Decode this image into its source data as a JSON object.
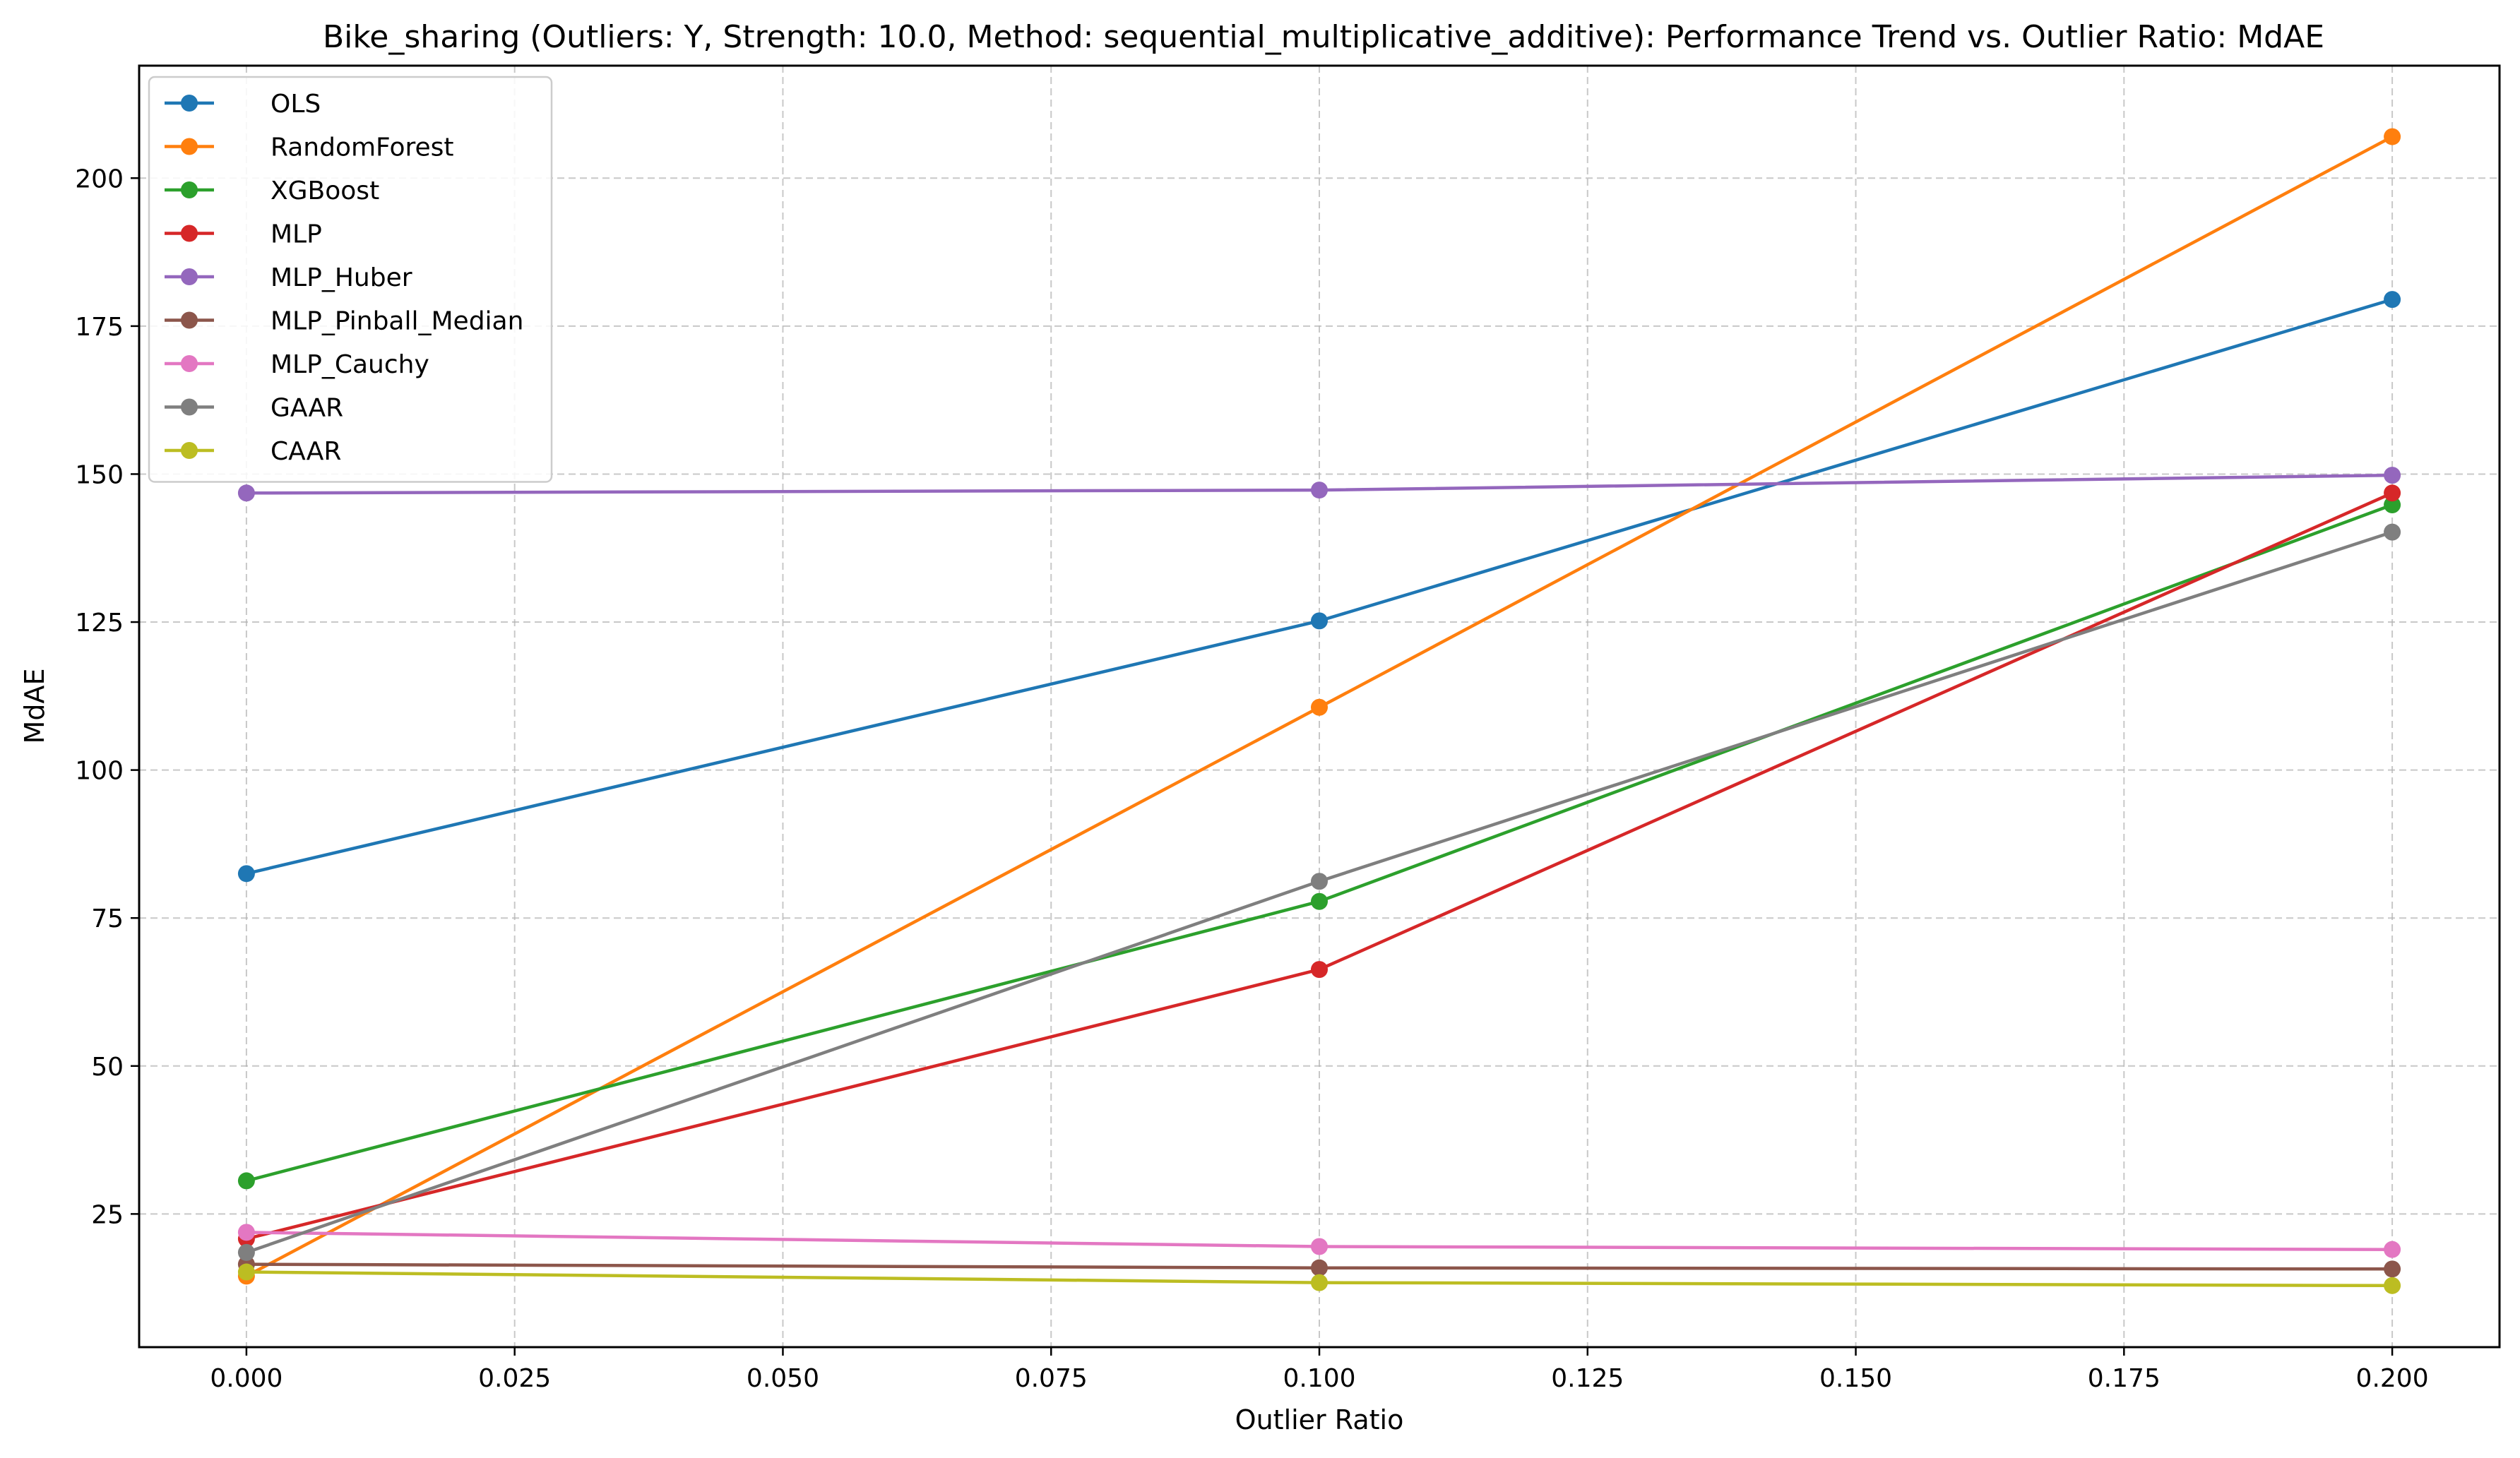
{
  "chart_data": {
    "type": "line",
    "title": "Bike_sharing (Outliers: Y, Strength: 10.0, Method: sequential_multiplicative_additive): Performance Trend vs. Outlier Ratio: MdAE",
    "xlabel": "Outlier Ratio",
    "ylabel": "MdAE",
    "xlim": [
      -0.01,
      0.21
    ],
    "ylim": [
      2.5,
      219
    ],
    "xticks": [
      "0.000",
      "0.025",
      "0.050",
      "0.075",
      "0.100",
      "0.125",
      "0.150",
      "0.175",
      "0.200"
    ],
    "yticks": [
      "25",
      "50",
      "75",
      "100",
      "125",
      "150",
      "175",
      "200"
    ],
    "grid": true,
    "legend_position": "upper-left",
    "x": [
      0.0,
      0.1,
      0.2
    ],
    "series": [
      {
        "name": "OLS",
        "color": "#1f77b4",
        "values": [
          82.5,
          125.2,
          179.5
        ]
      },
      {
        "name": "RandomForest",
        "color": "#ff7f0e",
        "values": [
          14.5,
          110.6,
          207.0
        ]
      },
      {
        "name": "XGBoost",
        "color": "#2ca02c",
        "values": [
          30.6,
          77.8,
          144.8
        ]
      },
      {
        "name": "MLP",
        "color": "#d62728",
        "values": [
          20.8,
          66.3,
          146.8
        ]
      },
      {
        "name": "MLP_Huber",
        "color": "#9467bd",
        "values": [
          146.8,
          147.3,
          149.8
        ]
      },
      {
        "name": "MLP_Pinball_Median",
        "color": "#8c564b",
        "values": [
          16.5,
          15.9,
          15.7
        ]
      },
      {
        "name": "MLP_Cauchy",
        "color": "#e377c2",
        "values": [
          21.9,
          19.5,
          19.0
        ]
      },
      {
        "name": "GAAR",
        "color": "#7f7f7f",
        "values": [
          18.5,
          81.2,
          140.2
        ]
      },
      {
        "name": "CAAR",
        "color": "#bcbd22",
        "values": [
          15.2,
          13.4,
          12.9
        ]
      }
    ]
  }
}
